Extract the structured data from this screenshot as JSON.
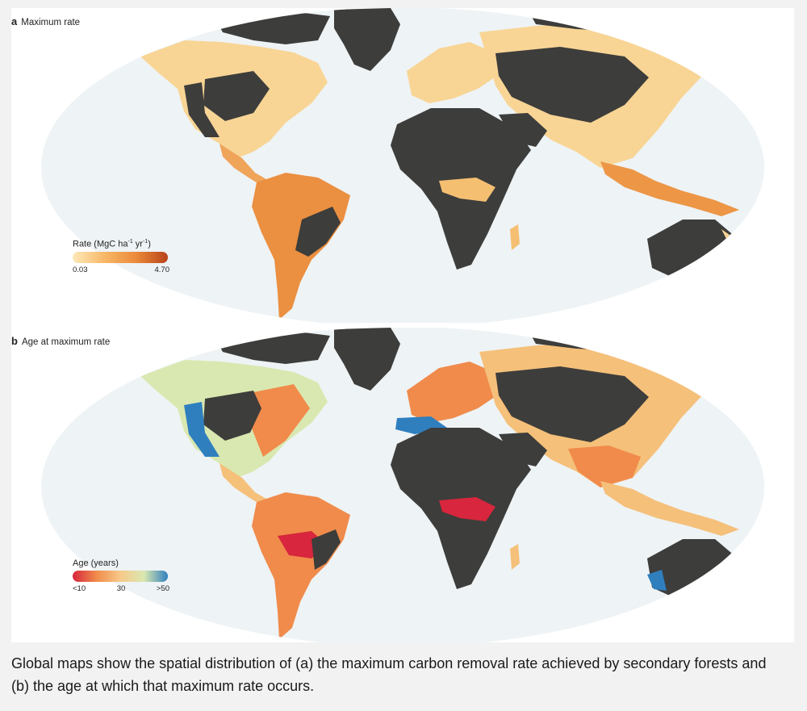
{
  "panels": {
    "a": {
      "letter": "a",
      "title": "Maximum rate",
      "legend": {
        "title_main": "Rate (MgC ha",
        "title_sup1": "-1",
        "title_mid": " yr",
        "title_sup2": "-1",
        "title_end": ")",
        "min_label": "0.03",
        "max_label": "4.70"
      }
    },
    "b": {
      "letter": "b",
      "title": "Age at maximum rate",
      "legend": {
        "title": "Age (years)",
        "ticks": [
          "<10",
          "30",
          ">50"
        ]
      }
    }
  },
  "caption": "Global maps show the spatial distribution of (a) the maximum carbon removal rate achieved by secondary forests and (b) the age at which that maximum rate occurs.",
  "colors": {
    "ocean": "#eef3f5",
    "land_no_data": "#3d3d3b",
    "rate_scale": [
      "#fde9b8",
      "#f7b867",
      "#eb8a3a",
      "#b8431a"
    ],
    "age_scale": [
      "#d7263d",
      "#f08b4b",
      "#f7c98a",
      "#d9e8b0",
      "#2f7fbf"
    ]
  }
}
